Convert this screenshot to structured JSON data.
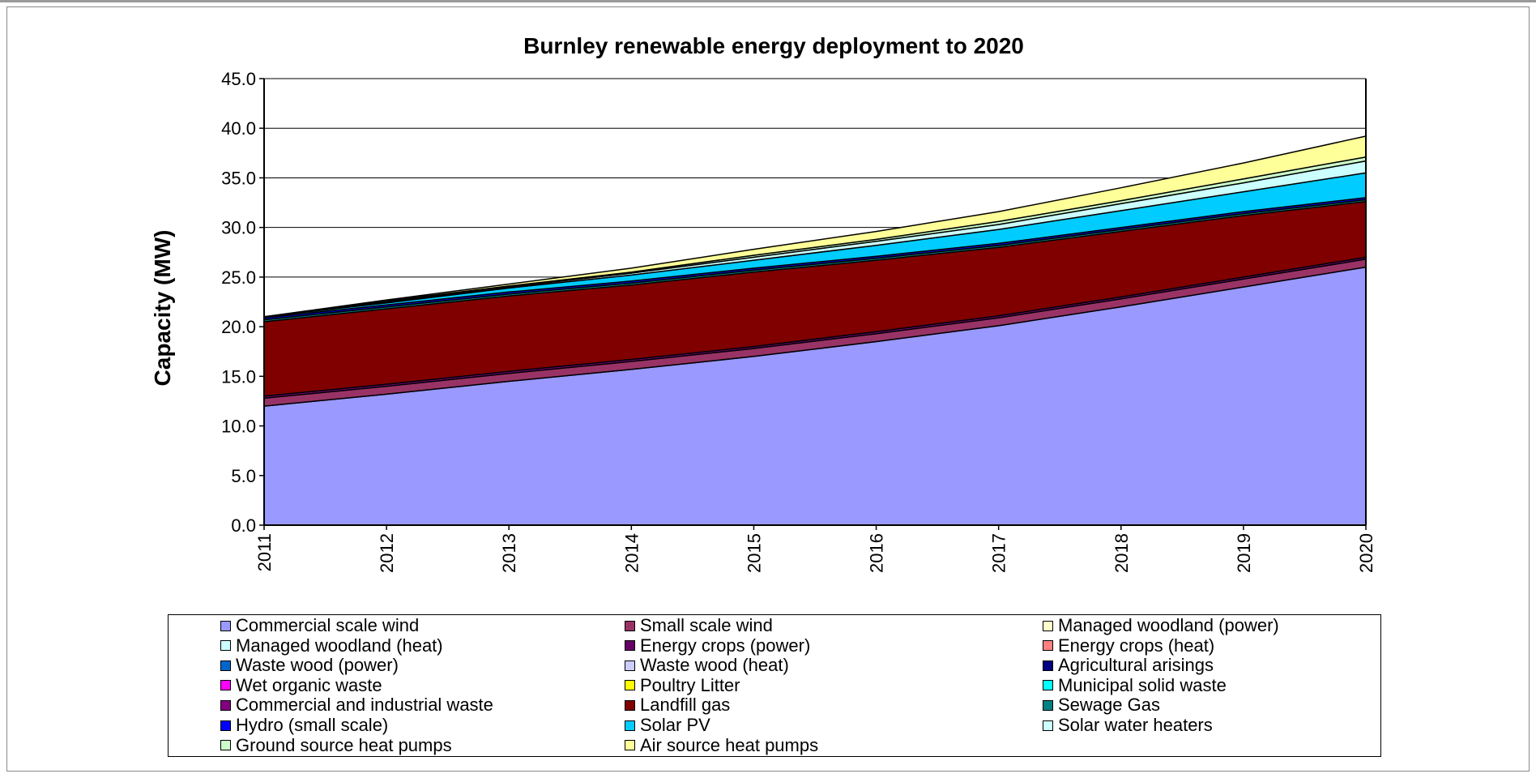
{
  "chart_data": {
    "type": "area",
    "stacked": true,
    "title": "Burnley renewable energy deployment to 2020",
    "xlabel": "",
    "ylabel": "Capacity (MW)",
    "x": [
      "2011",
      "2012",
      "2013",
      "2014",
      "2015",
      "2016",
      "2017",
      "2018",
      "2019",
      "2020"
    ],
    "ylim": [
      0,
      45
    ],
    "yticks": [
      "0.0",
      "5.0",
      "10.0",
      "15.0",
      "20.0",
      "25.0",
      "30.0",
      "35.0",
      "40.0",
      "45.0"
    ],
    "grid": "horizontal",
    "legend_position": "bottom",
    "series": [
      {
        "name": "Commercial scale wind",
        "color": "#9999ff",
        "values": [
          12.0,
          13.2,
          14.5,
          15.7,
          17.0,
          18.5,
          20.1,
          22.0,
          24.0,
          26.0
        ]
      },
      {
        "name": "Small scale wind",
        "color": "#993366",
        "values": [
          0.8,
          0.8,
          0.8,
          0.8,
          0.8,
          0.8,
          0.8,
          0.8,
          0.8,
          0.8
        ]
      },
      {
        "name": "Managed woodland (power)",
        "color": "#ffffcc",
        "values": [
          0,
          0,
          0,
          0,
          0,
          0,
          0,
          0,
          0,
          0
        ]
      },
      {
        "name": "Managed woodland (heat)",
        "color": "#ccffff",
        "values": [
          0,
          0,
          0,
          0,
          0,
          0,
          0,
          0,
          0,
          0
        ]
      },
      {
        "name": "Energy crops (power)",
        "color": "#660066",
        "values": [
          0,
          0,
          0,
          0,
          0,
          0,
          0,
          0,
          0,
          0
        ]
      },
      {
        "name": "Energy crops (heat)",
        "color": "#ff8080",
        "values": [
          0,
          0,
          0,
          0,
          0,
          0,
          0,
          0,
          0,
          0
        ]
      },
      {
        "name": "Waste wood (power)",
        "color": "#0066cc",
        "values": [
          0,
          0,
          0,
          0,
          0,
          0,
          0,
          0,
          0,
          0
        ]
      },
      {
        "name": "Waste wood (heat)",
        "color": "#ccccff",
        "values": [
          0,
          0,
          0,
          0,
          0,
          0,
          0,
          0,
          0,
          0
        ]
      },
      {
        "name": "Agricultural arisings",
        "color": "#000080",
        "values": [
          0,
          0,
          0,
          0,
          0,
          0,
          0,
          0,
          0,
          0
        ]
      },
      {
        "name": "Wet organic waste",
        "color": "#ff00ff",
        "values": [
          0,
          0,
          0,
          0,
          0,
          0,
          0,
          0,
          0,
          0
        ]
      },
      {
        "name": "Poultry Litter",
        "color": "#ffff00",
        "values": [
          0,
          0,
          0,
          0,
          0,
          0,
          0,
          0,
          0,
          0
        ]
      },
      {
        "name": "Municipal solid waste",
        "color": "#00ffff",
        "values": [
          0,
          0,
          0,
          0,
          0,
          0,
          0,
          0,
          0,
          0
        ]
      },
      {
        "name": "Commercial and industrial waste",
        "color": "#800080",
        "values": [
          0.2,
          0.2,
          0.2,
          0.2,
          0.2,
          0.2,
          0.2,
          0.2,
          0.2,
          0.2
        ]
      },
      {
        "name": "Landfill gas",
        "color": "#800000",
        "values": [
          7.5,
          7.6,
          7.6,
          7.5,
          7.5,
          7.2,
          6.9,
          6.6,
          6.2,
          5.6
        ]
      },
      {
        "name": "Sewage Gas",
        "color": "#008080",
        "values": [
          0.2,
          0.2,
          0.2,
          0.2,
          0.2,
          0.2,
          0.2,
          0.2,
          0.2,
          0.2
        ]
      },
      {
        "name": "Hydro (small scale)",
        "color": "#0000ff",
        "values": [
          0.2,
          0.2,
          0.2,
          0.2,
          0.2,
          0.2,
          0.2,
          0.2,
          0.2,
          0.2
        ]
      },
      {
        "name": "Solar PV",
        "color": "#00ccff",
        "values": [
          0.1,
          0.2,
          0.4,
          0.6,
          0.8,
          1.1,
          1.4,
          1.7,
          2.0,
          2.5
        ]
      },
      {
        "name": "Solar water heaters",
        "color": "#ccffff",
        "values": [
          0,
          0.1,
          0.1,
          0.2,
          0.3,
          0.4,
          0.5,
          0.7,
          0.9,
          1.2
        ]
      },
      {
        "name": "Ground source heat pumps",
        "color": "#ccffcc",
        "values": [
          0,
          0.1,
          0.1,
          0.1,
          0.2,
          0.2,
          0.3,
          0.3,
          0.4,
          0.4
        ]
      },
      {
        "name": "Air source heat pumps",
        "color": "#ffff99",
        "values": [
          0,
          0.1,
          0.2,
          0.4,
          0.6,
          0.8,
          1.0,
          1.3,
          1.6,
          2.1
        ]
      }
    ]
  }
}
